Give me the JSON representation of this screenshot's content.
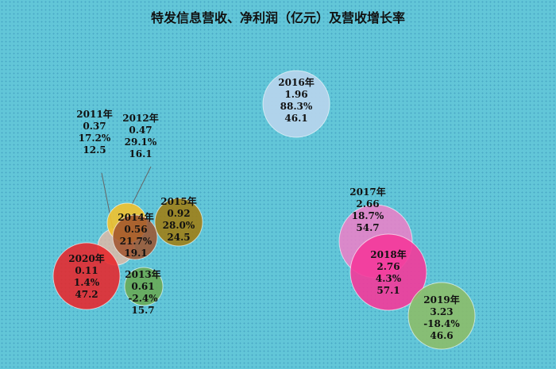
{
  "chart_data": {
    "type": "scatter",
    "title": "特发信息营收、净利润（亿元）及营收增长率",
    "points": [
      {
        "year": "2011年",
        "profit": "0.37",
        "growth": "17.2%",
        "revenue": "12.5",
        "color": "#f0b8a0"
      },
      {
        "year": "2012年",
        "profit": "0.47",
        "growth": "29.1%",
        "revenue": "16.1",
        "color": "#f2c12e"
      },
      {
        "year": "2013年",
        "profit": "0.61",
        "growth": "-2.4%",
        "revenue": "15.7",
        "color": "#6aa84f"
      },
      {
        "year": "2014年",
        "profit": "0.56",
        "growth": "21.7%",
        "revenue": "19.1",
        "color": "#a0522d"
      },
      {
        "year": "2015年",
        "profit": "0.92",
        "growth": "28.0%",
        "revenue": "24.5",
        "color": "#a37a0a"
      },
      {
        "year": "2016年",
        "profit": "1.96",
        "growth": "88.3%",
        "revenue": "46.1",
        "color": "#b4d4ec"
      },
      {
        "year": "2017年",
        "profit": "2.66",
        "growth": "18.7%",
        "revenue": "54.7",
        "color": "#f07ec8"
      },
      {
        "year": "2018年",
        "profit": "2.76",
        "growth": "4.3%",
        "revenue": "57.1",
        "color": "#f4399a"
      },
      {
        "year": "2019年",
        "profit": "3.23",
        "growth": "-18.4%",
        "revenue": "46.6",
        "color": "#8cbc6a"
      },
      {
        "year": "2020年",
        "profit": "0.11",
        "growth": "1.4%",
        "revenue": "47.2",
        "color": "#e8262a"
      }
    ]
  }
}
